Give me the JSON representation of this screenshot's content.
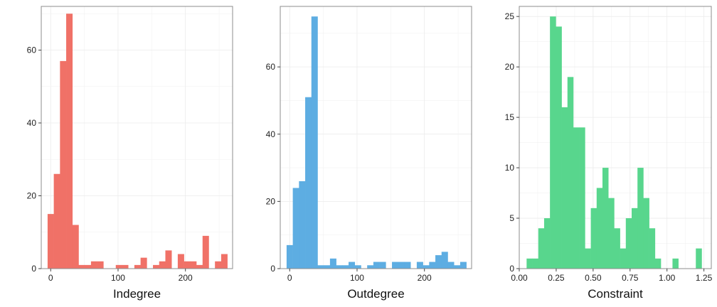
{
  "chart_data": [
    {
      "type": "bar",
      "xlabel": "Indegree",
      "ylabel": "",
      "color": "#F07167",
      "xlim": [
        -14,
        270
      ],
      "ylim": [
        0,
        72
      ],
      "xticks": [
        0,
        100,
        200
      ],
      "yticks": [
        0,
        20,
        40,
        60
      ],
      "grid": true,
      "bin_width": 9.2,
      "x": [
        0,
        9.2,
        18.4,
        27.6,
        36.8,
        46,
        55.2,
        64.4,
        73.6,
        82.8,
        92,
        101.2,
        110.4,
        119.6,
        128.8,
        138,
        147.2,
        156.4,
        165.6,
        174.8,
        184,
        193.2,
        202.4,
        211.6,
        220.8,
        230,
        239.2,
        248.4,
        257.6
      ],
      "values": [
        15,
        26,
        57,
        70,
        12,
        1,
        1,
        2,
        2,
        0,
        0,
        1,
        1,
        0,
        1,
        3,
        0,
        1,
        2,
        5,
        0,
        4,
        2,
        2,
        1,
        9,
        0,
        2,
        4
      ]
    },
    {
      "type": "bar",
      "xlabel": "Outdegree",
      "ylabel": "",
      "color": "#5DADE2",
      "xlim": [
        -14,
        270
      ],
      "ylim": [
        0,
        78
      ],
      "xticks": [
        0,
        100,
        200
      ],
      "yticks": [
        0,
        20,
        40,
        60
      ],
      "grid": true,
      "bin_width": 9.2,
      "x": [
        0,
        9.2,
        18.4,
        27.6,
        36.8,
        46,
        55.2,
        64.4,
        73.6,
        82.8,
        92,
        101.2,
        110.4,
        119.6,
        128.8,
        138,
        147.2,
        156.4,
        165.6,
        174.8,
        184,
        193.2,
        202.4,
        211.6,
        220.8,
        230,
        239.2,
        248.4,
        257.6
      ],
      "values": [
        7,
        24,
        26,
        51,
        75,
        1,
        1,
        3,
        1,
        1,
        2,
        1,
        0,
        1,
        2,
        2,
        0,
        2,
        2,
        2,
        0,
        2,
        1,
        2,
        4,
        5,
        2,
        1,
        2
      ]
    },
    {
      "type": "bar",
      "xlabel": "Constraint",
      "ylabel": "",
      "color": "#58D68D",
      "xlim": [
        0,
        1.3
      ],
      "ylim": [
        0,
        26
      ],
      "xticks": [
        0,
        0.25,
        0.5,
        0.75,
        1,
        1.25
      ],
      "xtick_labels": [
        "0.00",
        "0.25",
        "0.50",
        "0.75",
        "1.00",
        "1.25"
      ],
      "yticks": [
        0,
        5,
        10,
        15,
        20,
        25
      ],
      "grid": true,
      "bin_width": 0.0395,
      "x": [
        0.0695,
        0.109,
        0.1485,
        0.188,
        0.2275,
        0.267,
        0.3065,
        0.346,
        0.3855,
        0.425,
        0.4645,
        0.504,
        0.5435,
        0.583,
        0.6225,
        0.662,
        0.7015,
        0.741,
        0.7805,
        0.82,
        0.8595,
        0.899,
        0.9385,
        0.978,
        1.0175,
        1.057,
        1.0965,
        1.136,
        1.1755,
        1.215
      ],
      "values": [
        1,
        1,
        4,
        5,
        25,
        24,
        16,
        19,
        14,
        14,
        2,
        6,
        8,
        10,
        7,
        4,
        2,
        5,
        6,
        10,
        7,
        4,
        1,
        0,
        0,
        1,
        0,
        0,
        0,
        2
      ]
    }
  ]
}
